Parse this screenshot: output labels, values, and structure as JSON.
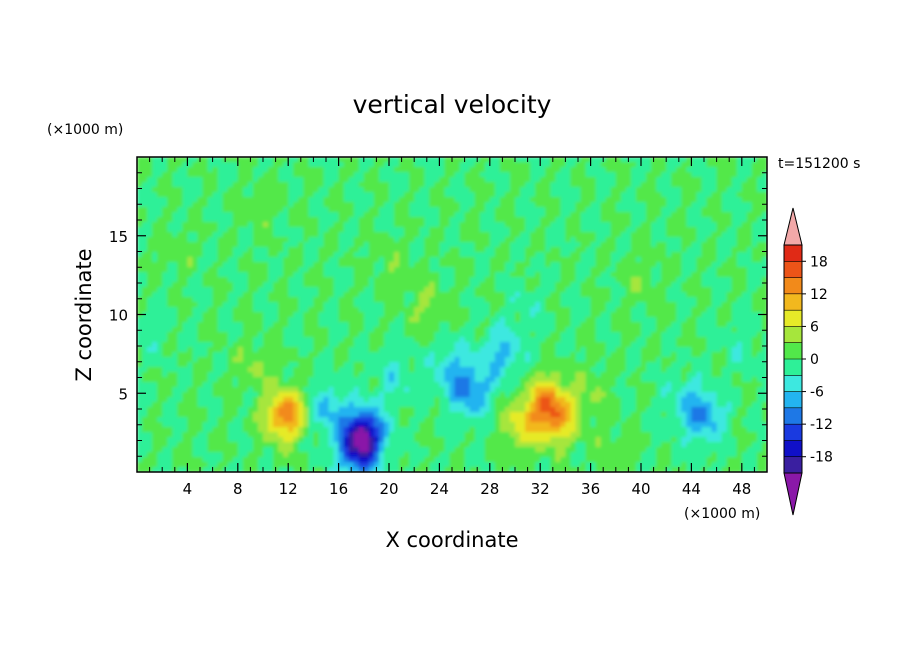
{
  "chart_data": {
    "type": "heatmap",
    "title": "vertical velocity",
    "xlabel": "X coordinate",
    "ylabel": "Z coordinate",
    "x_unit": "(×1000 m)",
    "y_unit": "(×1000 m)",
    "time_label": "t=151200 s",
    "xlim": [
      0,
      50
    ],
    "ylim": [
      0,
      20
    ],
    "x_ticks": [
      4,
      8,
      12,
      16,
      20,
      24,
      28,
      32,
      36,
      40,
      44,
      48
    ],
    "y_ticks": [
      5,
      10,
      15
    ],
    "colorbar": {
      "levels": [
        -21,
        -18,
        -15,
        -12,
        -9,
        -6,
        -3,
        0,
        3,
        6,
        9,
        12,
        15,
        18,
        21
      ],
      "tick_labels": [
        "18",
        "12",
        "6",
        "0",
        "-6",
        "-12",
        "-18"
      ],
      "tick_values": [
        18,
        12,
        6,
        0,
        -6,
        -12,
        -18
      ],
      "colors": [
        "#7a1fa2",
        "#3a1fa0",
        "#1010c8",
        "#1a3ae0",
        "#1e78e6",
        "#23b4f0",
        "#3de8e0",
        "#2ef098",
        "#52e84a",
        "#a6e63c",
        "#e6ea28",
        "#f2b81e",
        "#f28a1a",
        "#ec5418",
        "#e02a16",
        "#f2a0a0"
      ],
      "under_color": "#8a18a8",
      "over_color": "#f2a8a8"
    },
    "features": [
      {
        "x": 11.5,
        "z": 3.5,
        "w": 9
      },
      {
        "x": 12.3,
        "z": 3.8,
        "w": 6
      },
      {
        "x": 9.5,
        "z": 6.8,
        "w": 3
      },
      {
        "x": 18.0,
        "z": 2.5,
        "w": -17
      },
      {
        "x": 17.5,
        "z": 1.2,
        "w": -12
      },
      {
        "x": 15.0,
        "z": 4.0,
        "w": -7
      },
      {
        "x": 25.0,
        "z": 6.5,
        "w": -6
      },
      {
        "x": 26.5,
        "z": 5.0,
        "w": -9
      },
      {
        "x": 29.0,
        "z": 7.5,
        "w": -7
      },
      {
        "x": 32.5,
        "z": 4.5,
        "w": 11
      },
      {
        "x": 33.3,
        "z": 3.2,
        "w": 9
      },
      {
        "x": 30.5,
        "z": 3.0,
        "w": 7
      },
      {
        "x": 36.0,
        "z": 5.0,
        "w": 3
      },
      {
        "x": 45.0,
        "z": 3.5,
        "w": -8
      },
      {
        "x": 43.5,
        "z": 4.5,
        "w": -4
      },
      {
        "x": 38.0,
        "z": 1.5,
        "w": 2
      },
      {
        "x": 23.0,
        "z": 10.5,
        "w": 3
      },
      {
        "x": 20.0,
        "z": 13.0,
        "w": 2
      },
      {
        "x": 10.0,
        "z": 17.0,
        "w": 2
      },
      {
        "x": 40.0,
        "z": 12.0,
        "w": 2
      },
      {
        "x": 3.0,
        "z": 14.0,
        "w": 1.5
      },
      {
        "x": 48.0,
        "z": 8.0,
        "w": -2
      },
      {
        "x": 1.0,
        "z": 9.0,
        "w": -2
      },
      {
        "x": 31.0,
        "z": 10.5,
        "w": -2
      },
      {
        "x": 20.5,
        "z": 6.0,
        "w": -4
      }
    ]
  }
}
